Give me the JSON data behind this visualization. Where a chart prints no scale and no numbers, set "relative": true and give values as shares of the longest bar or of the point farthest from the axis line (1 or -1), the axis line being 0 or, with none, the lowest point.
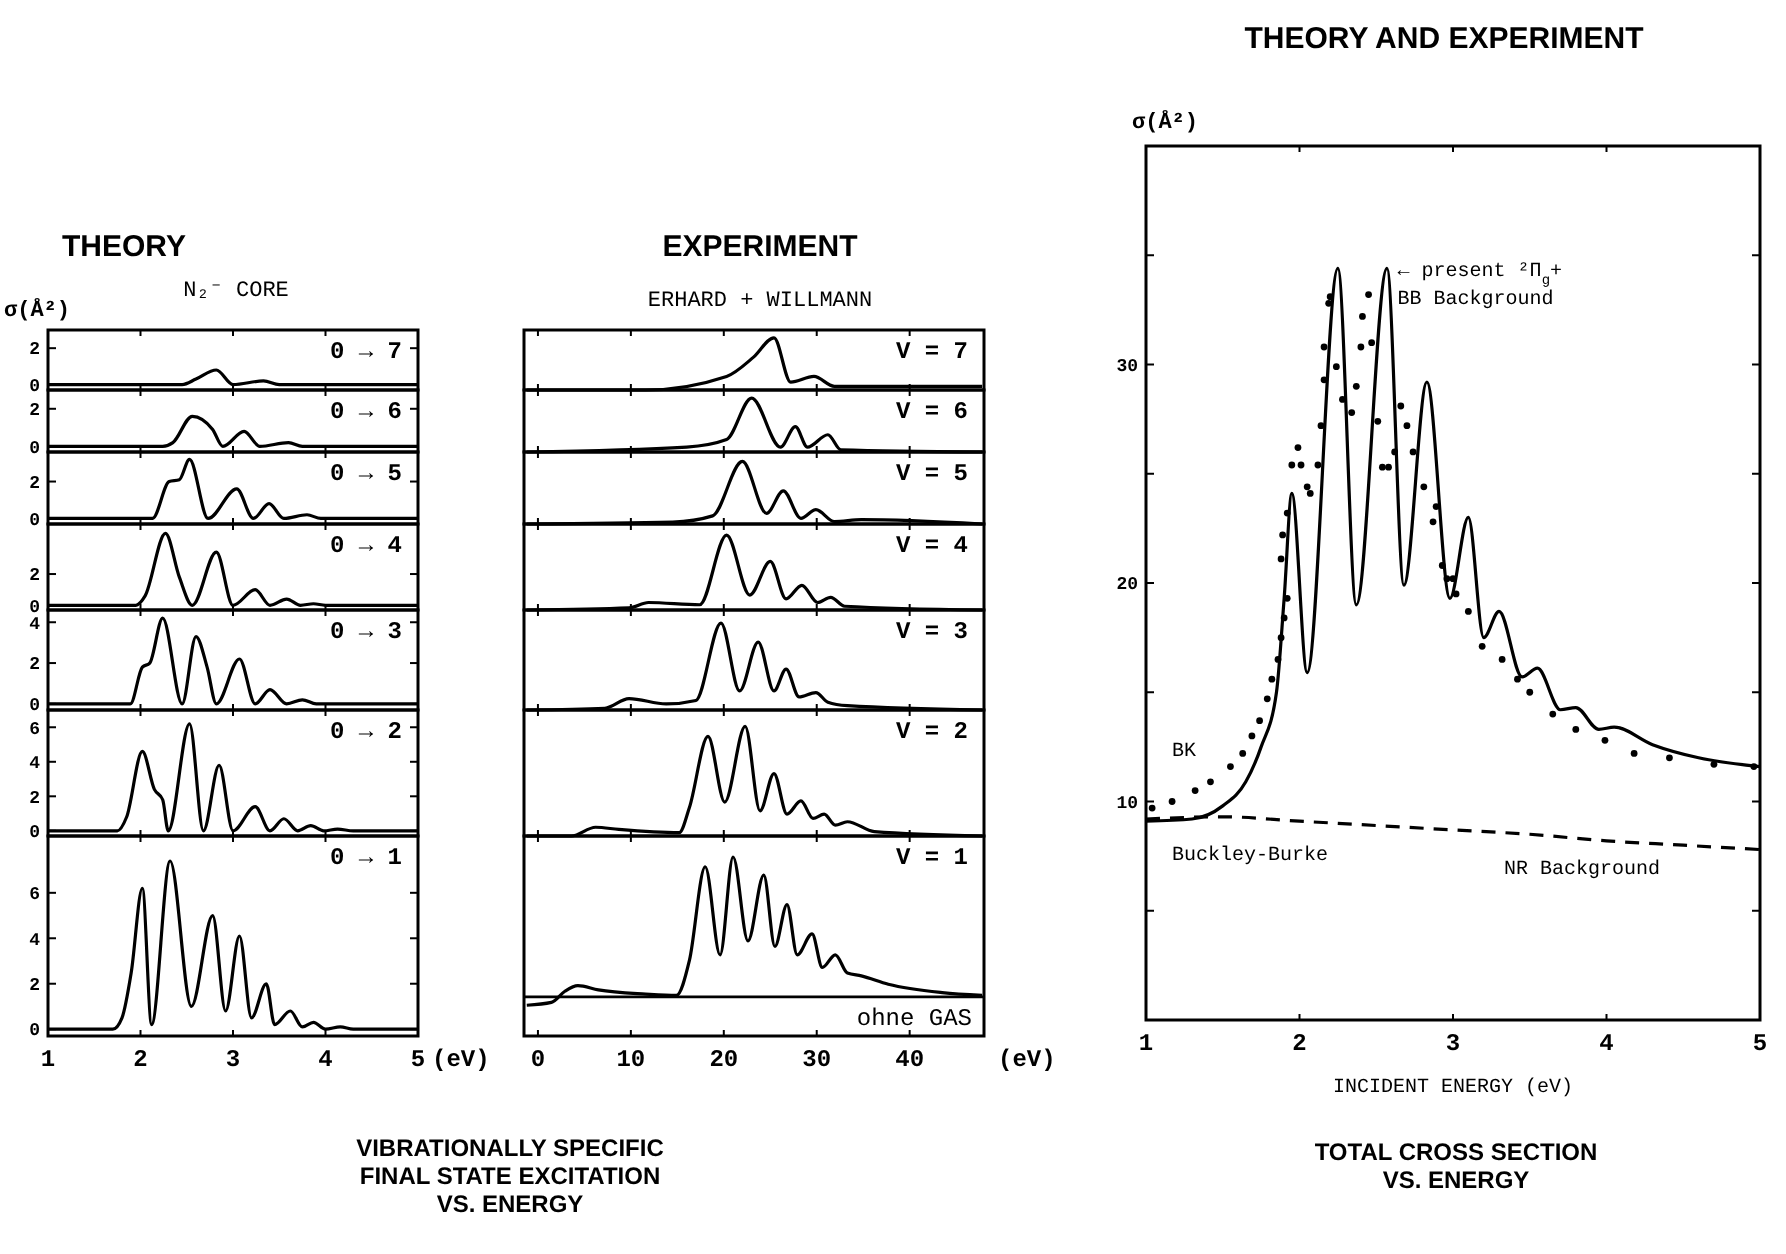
{
  "chart_data": [
    {
      "type": "line",
      "title": "THEORY",
      "subtitle": "N₂⁻ CORE",
      "ylabel": "σ(Å²)",
      "xlim": [
        1,
        5
      ],
      "xticks": [
        1,
        2,
        3,
        4,
        5
      ],
      "ylim": [
        -0.3,
        3
      ],
      "yticks": [
        0,
        2
      ],
      "tick_labels": "y",
      "series": [
        {
          "name": "0 → 7",
          "color": "#000000",
          "x": [
            1,
            2.45,
            2.6,
            2.82,
            3.0,
            3.33,
            3.5,
            5
          ],
          "values": [
            0,
            0,
            0.3,
            0.8,
            0,
            0.2,
            0,
            0
          ]
        }
      ]
    },
    {
      "type": "line",
      "xlim": [
        1,
        5
      ],
      "xticks": [
        1,
        2,
        3,
        4,
        5
      ],
      "ylim": [
        -0.3,
        3
      ],
      "yticks": [
        0,
        2
      ],
      "tick_labels": "y",
      "series": [
        {
          "name": "0 → 6",
          "color": "#000000",
          "x": [
            1,
            2.24,
            2.35,
            2.56,
            2.78,
            2.89,
            3.12,
            3.29,
            3.6,
            3.75,
            5
          ],
          "values": [
            0,
            0,
            0.2,
            1.6,
            0.9,
            0,
            0.8,
            0,
            0.2,
            0,
            0
          ]
        }
      ]
    },
    {
      "type": "line",
      "xlim": [
        1,
        5
      ],
      "xticks": [
        1,
        2,
        3,
        4,
        5
      ],
      "ylim": [
        -0.3,
        3.6
      ],
      "yticks": [
        0,
        2
      ],
      "tick_labels": "y",
      "series": [
        {
          "name": "0 → 5",
          "color": "#000000",
          "x": [
            1,
            2.13,
            2.31,
            2.42,
            2.53,
            2.73,
            3.04,
            3.22,
            3.39,
            3.55,
            3.8,
            3.95,
            5
          ],
          "values": [
            0,
            0,
            2.0,
            2.1,
            3.2,
            0,
            1.6,
            0,
            0.8,
            0,
            0.2,
            0,
            0
          ]
        }
      ]
    },
    {
      "type": "line",
      "xlim": [
        1,
        5
      ],
      "xticks": [
        1,
        2,
        3,
        4,
        5
      ],
      "ylim": [
        -0.3,
        5.2
      ],
      "yticks": [
        0,
        2
      ],
      "tick_labels": "y",
      "series": [
        {
          "name": "0 → 4",
          "color": "#000000",
          "x": [
            1,
            1.95,
            2.05,
            2.27,
            2.42,
            2.56,
            2.82,
            3.0,
            3.24,
            3.4,
            3.58,
            3.73,
            3.87,
            4.0,
            5
          ],
          "values": [
            0,
            0,
            0.6,
            4.6,
            1.8,
            0,
            3.4,
            0,
            1.0,
            0,
            0.4,
            0,
            0.1,
            0,
            0
          ]
        }
      ]
    },
    {
      "type": "line",
      "xlim": [
        1,
        5
      ],
      "xticks": [
        1,
        2,
        3,
        4,
        5
      ],
      "ylim": [
        -0.3,
        4.6
      ],
      "yticks": [
        0,
        2,
        4
      ],
      "tick_labels": "y",
      "series": [
        {
          "name": "0 → 3",
          "color": "#000000",
          "x": [
            1,
            1.89,
            2.02,
            2.1,
            2.24,
            2.45,
            2.6,
            2.72,
            2.82,
            3.07,
            3.24,
            3.4,
            3.58,
            3.75,
            3.9,
            5
          ],
          "values": [
            0,
            0,
            1.8,
            2.0,
            4.2,
            0,
            3.3,
            1.8,
            0,
            2.2,
            0,
            0.7,
            0,
            0.2,
            0,
            0
          ]
        }
      ]
    },
    {
      "type": "line",
      "xlim": [
        1,
        5
      ],
      "xticks": [
        1,
        2,
        3,
        4,
        5
      ],
      "ylim": [
        -0.3,
        7
      ],
      "yticks": [
        0,
        2,
        4,
        6
      ],
      "tick_labels": "y",
      "series": [
        {
          "name": "0 → 2",
          "color": "#000000",
          "x": [
            1,
            1.75,
            1.85,
            2.02,
            2.15,
            2.24,
            2.3,
            2.53,
            2.68,
            2.85,
            3.0,
            3.24,
            3.4,
            3.55,
            3.7,
            3.84,
            3.98,
            4.13,
            4.3,
            5
          ],
          "values": [
            0,
            0,
            0.8,
            4.6,
            2.4,
            1.8,
            0,
            6.2,
            0,
            3.8,
            0,
            1.4,
            0,
            0.7,
            0,
            0.3,
            0,
            0.1,
            0,
            0
          ]
        }
      ]
    },
    {
      "type": "line",
      "xlabel": "(eV)",
      "xlim": [
        1,
        5
      ],
      "xticks": [
        1,
        2,
        3,
        4,
        5
      ],
      "ylim": [
        -0.3,
        8.5
      ],
      "yticks": [
        0,
        2,
        4,
        6
      ],
      "annotations": [
        "VIBRATIONALLY SPECIFIC FINAL STATE EXCITATION VS. ENERGY"
      ],
      "series": [
        {
          "name": "0 → 1",
          "color": "#000000",
          "x": [
            1,
            1.7,
            1.8,
            1.9,
            2.02,
            2.12,
            2.32,
            2.55,
            2.78,
            2.92,
            3.07,
            3.2,
            3.36,
            3.45,
            3.62,
            3.75,
            3.87,
            4.0,
            4.16,
            4.3,
            5
          ],
          "values": [
            0,
            0,
            0.5,
            2.5,
            6.2,
            0.2,
            7.4,
            1.0,
            5.0,
            0.8,
            4.1,
            0.5,
            2.0,
            0.2,
            0.8,
            0.1,
            0.3,
            0,
            0.1,
            0,
            0
          ]
        }
      ]
    },
    {
      "type": "line",
      "relative": true,
      "title": "EXPERIMENT",
      "subtitle": "ERHARD + WILLMANN",
      "xlim": [
        -1.5,
        48
      ],
      "xticks": [
        0,
        10,
        20,
        30,
        40
      ],
      "tick_labels": false,
      "series": [
        {
          "name": "V = 7",
          "color": "#000000",
          "x": [
            -1.2,
            11.6,
            20.3,
            23.2,
            25.4,
            27.2,
            29.7,
            31.9,
            47.8
          ],
          "values": [
            0,
            0,
            0.26,
            0.63,
            1,
            0.15,
            0.26,
            0.07,
            0.07
          ]
        }
      ]
    },
    {
      "type": "line",
      "relative": true,
      "xlim": [
        -1.5,
        48
      ],
      "xticks": [
        0,
        10,
        20,
        30,
        40
      ],
      "tick_labels": false,
      "series": [
        {
          "name": "V = 6",
          "color": "#000000",
          "x": [
            -1.2,
            16.0,
            20.3,
            23.0,
            26.1,
            27.7,
            29.0,
            31.2,
            32.6,
            47.8
          ],
          "values": [
            0,
            0.09,
            0.23,
            1,
            0.09,
            0.47,
            0.09,
            0.32,
            0.04,
            0
          ]
        }
      ]
    },
    {
      "type": "line",
      "relative": true,
      "xlim": [
        -1.5,
        48
      ],
      "xticks": [
        0,
        10,
        20,
        30,
        40
      ],
      "tick_labels": false,
      "series": [
        {
          "name": "V = 5",
          "color": "#000000",
          "x": [
            -1.2,
            14.5,
            18.8,
            22.0,
            24.6,
            26.4,
            28.3,
            29.9,
            31.9,
            34.8,
            47.8
          ],
          "values": [
            0,
            0.03,
            0.13,
            1,
            0.17,
            0.53,
            0.09,
            0.23,
            0.04,
            0.07,
            0
          ]
        }
      ]
    },
    {
      "type": "line",
      "relative": true,
      "xlim": [
        -1.5,
        48
      ],
      "xticks": [
        0,
        10,
        20,
        30,
        40
      ],
      "tick_labels": false,
      "series": [
        {
          "name": "V = 4",
          "color": "#000000",
          "x": [
            -1.2,
            9.8,
            11.9,
            17.4,
            20.3,
            22.8,
            25.0,
            26.7,
            28.4,
            30.1,
            31.5,
            33.0,
            47.8
          ],
          "values": [
            0,
            0.03,
            0.1,
            0.07,
            1,
            0.2,
            0.65,
            0.15,
            0.33,
            0.1,
            0.17,
            0.05,
            0
          ]
        }
      ]
    },
    {
      "type": "line",
      "relative": true,
      "xlim": [
        -1.5,
        48
      ],
      "xticks": [
        0,
        10,
        20,
        30,
        40
      ],
      "tick_labels": false,
      "series": [
        {
          "name": "V = 3",
          "color": "#000000",
          "x": [
            -1.2,
            7.2,
            9.8,
            13.8,
            17.0,
            19.7,
            21.7,
            23.7,
            25.4,
            26.7,
            28.1,
            29.9,
            31.2,
            33.3,
            47.8
          ],
          "values": [
            0,
            0.02,
            0.13,
            0.07,
            0.11,
            1,
            0.22,
            0.78,
            0.22,
            0.47,
            0.15,
            0.2,
            0.09,
            0.05,
            0
          ]
        }
      ]
    },
    {
      "type": "line",
      "relative": true,
      "xlim": [
        -1.5,
        48
      ],
      "xticks": [
        0,
        10,
        20,
        30,
        40
      ],
      "tick_labels": false,
      "series": [
        {
          "name": "V = 2",
          "color": "#000000",
          "x": [
            -1.2,
            3.6,
            6.2,
            8.7,
            15.2,
            16.3,
            18.3,
            20.1,
            22.3,
            23.9,
            25.4,
            26.8,
            28.3,
            29.6,
            30.8,
            32.0,
            33.3,
            36.2,
            47.8
          ],
          "values": [
            0,
            0,
            0.08,
            0.06,
            0.03,
            0.26,
            0.91,
            0.31,
            1,
            0.23,
            0.57,
            0.2,
            0.32,
            0.16,
            0.2,
            0.1,
            0.13,
            0.04,
            0
          ]
        }
      ]
    },
    {
      "type": "line",
      "relative": true,
      "xlabel": "(eV)",
      "xlim": [
        -1.5,
        48
      ],
      "xticks": [
        0,
        10,
        20,
        30,
        40
      ],
      "tick_labels": "x",
      "ref_lines": [
        {
          "axis": "y",
          "value": 0,
          "label": "ohne GAS"
        }
      ],
      "series": [
        {
          "name": "V = 1",
          "color": "#000000",
          "x": [
            -1.2,
            1.45,
            2.9,
            4.3,
            6.5,
            11.6,
            14.9,
            16.3,
            18.0,
            19.6,
            21.0,
            22.6,
            24.3,
            25.5,
            26.8,
            27.9,
            29.5,
            30.6,
            32.0,
            33.3,
            34.8,
            37.7,
            43.5,
            47.8
          ],
          "values": [
            -0.06,
            -0.04,
            0.04,
            0.08,
            0.05,
            0.02,
            0.01,
            0.26,
            0.93,
            0.3,
            1,
            0.4,
            0.87,
            0.36,
            0.66,
            0.3,
            0.45,
            0.21,
            0.3,
            0.17,
            0.15,
            0.09,
            0.03,
            0.01
          ]
        }
      ]
    },
    {
      "type": "line",
      "title": "THEORY AND EXPERIMENT",
      "xlabel": "INCIDENT ENERGY (eV)",
      "ylabel": "σ(Å²)",
      "xlim": [
        1,
        5
      ],
      "xticks": [
        1,
        2,
        3,
        4,
        5
      ],
      "ylim": [
        0,
        40
      ],
      "yticks": [
        {
          "value": 5,
          "label": null
        },
        10,
        {
          "value": 15,
          "label": null
        },
        20,
        {
          "value": 25,
          "label": null
        },
        30,
        {
          "value": 35,
          "label": null
        }
      ],
      "annotations": [
        {
          "text": "← present ²Π$_{g}$+ BB Background",
          "x": 2.6,
          "y": 34.4
        },
        "BK",
        "Buckley-Burke",
        "NR Background",
        "TOTAL CROSS SECTION VS. ENERGY"
      ],
      "series": [
        {
          "color": "#000000",
          "x": [
            1.0,
            1.3,
            1.5,
            1.65,
            1.75,
            1.85,
            1.9,
            1.95,
            2.05,
            2.25,
            2.37,
            2.57,
            2.68,
            2.83,
            2.98,
            3.1,
            3.2,
            3.3,
            3.45,
            3.55,
            3.7,
            3.8,
            3.95,
            4.05,
            4.3,
            4.6,
            5.0
          ],
          "values": [
            9.1,
            9.2,
            9.8,
            10.9,
            12.5,
            15.0,
            19.3,
            24.1,
            15.9,
            34.4,
            19.0,
            34.4,
            19.9,
            29.2,
            19.3,
            23.0,
            17.5,
            18.7,
            15.7,
            16.1,
            14.2,
            14.3,
            13.3,
            13.4,
            12.6,
            12.0,
            11.6
          ]
        },
        {
          "type": "scatter",
          "marker": "circle",
          "color": "#000000",
          "x": [
            1.04,
            1.17,
            1.32,
            1.42,
            1.55,
            1.63,
            1.69,
            1.74,
            1.79,
            1.82,
            1.86,
            1.88,
            1.9,
            1.92,
            1.88,
            1.89,
            1.92,
            1.95,
            1.99,
            2.01,
            2.05,
            2.07,
            2.12,
            2.14,
            2.16,
            2.16,
            2.19,
            2.2,
            2.24,
            2.28,
            2.34,
            2.37,
            2.4,
            2.41,
            2.45,
            2.47,
            2.51,
            2.54,
            2.58,
            2.62,
            2.66,
            2.7,
            2.74,
            2.81,
            2.87,
            2.89,
            2.93,
            2.96,
            3.0,
            3.02,
            3.1,
            3.19,
            3.32,
            3.42,
            3.5,
            3.65,
            3.8,
            3.99,
            4.18,
            4.41,
            4.7,
            4.96
          ],
          "values": [
            9.7,
            10.0,
            10.5,
            10.9,
            11.6,
            12.2,
            13.0,
            13.7,
            14.7,
            15.6,
            16.5,
            17.5,
            18.4,
            19.3,
            21.1,
            22.2,
            23.2,
            25.4,
            26.2,
            25.4,
            24.4,
            24.1,
            25.4,
            27.2,
            29.3,
            30.8,
            32.8,
            33.1,
            29.9,
            28.4,
            27.8,
            29.0,
            30.8,
            32.2,
            33.2,
            31.0,
            27.4,
            25.3,
            25.3,
            26.0,
            28.1,
            27.2,
            26.0,
            24.4,
            22.8,
            23.5,
            20.8,
            20.2,
            20.2,
            19.5,
            18.7,
            17.1,
            16.5,
            15.6,
            15.0,
            14.0,
            13.3,
            12.8,
            12.2,
            12.0,
            11.7,
            11.6
          ]
        },
        {
          "line_style": "dashed",
          "color": "#000000",
          "x": [
            1,
            1.5,
            2,
            2.5,
            3,
            3.5,
            4,
            4.5,
            5
          ],
          "values": [
            9.2,
            9.3,
            9.1,
            8.9,
            8.7,
            8.5,
            8.2,
            8.0,
            7.8
          ]
        }
      ]
    }
  ]
}
